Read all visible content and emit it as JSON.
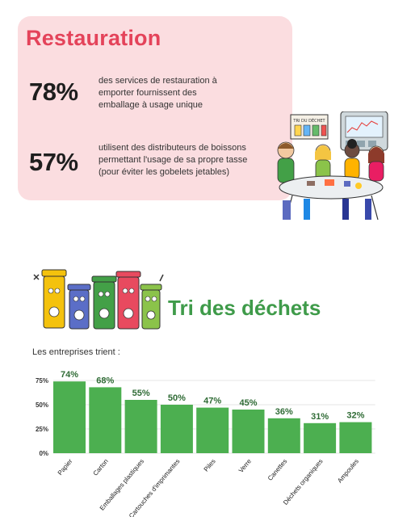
{
  "restauration": {
    "title": "Restauration",
    "stats": [
      {
        "value": "78%",
        "lines": [
          "des services de restauration à",
          "emporter fournissent des",
          "emballage à usage unique"
        ]
      },
      {
        "value": "57%",
        "lines": [
          "utilisent des distributeurs de boissons",
          "permettant l'usage de sa propre tasse",
          "(pour éviter les gobelets jetables)"
        ]
      }
    ],
    "illustration_sign": "TRI DU DÉCHET"
  },
  "tri": {
    "title": "Tri des déchets",
    "caption": "Les entreprises trient :"
  },
  "colors": {
    "pink_bg": "#fbdde0",
    "pink_title": "#e4435a",
    "green_title": "#3f9b4a",
    "bar": "#4caf50",
    "bar_label": "#2f6b35"
  },
  "chart_data": {
    "type": "bar",
    "categories": [
      "Papier",
      "Carton",
      "Emballages plastiques",
      "Cartouches d'imprimantes",
      "Piles",
      "Verre",
      "Canettes",
      "Déchets organiques",
      "Ampoules"
    ],
    "values": [
      74,
      68,
      55,
      50,
      47,
      45,
      36,
      31,
      32
    ],
    "value_labels": [
      "74%",
      "68%",
      "55%",
      "50%",
      "47%",
      "45%",
      "36%",
      "31%",
      "32%"
    ],
    "yticks": [
      "0%",
      "25%",
      "50%",
      "75%"
    ],
    "ylim": [
      0,
      75
    ],
    "grid": true
  }
}
